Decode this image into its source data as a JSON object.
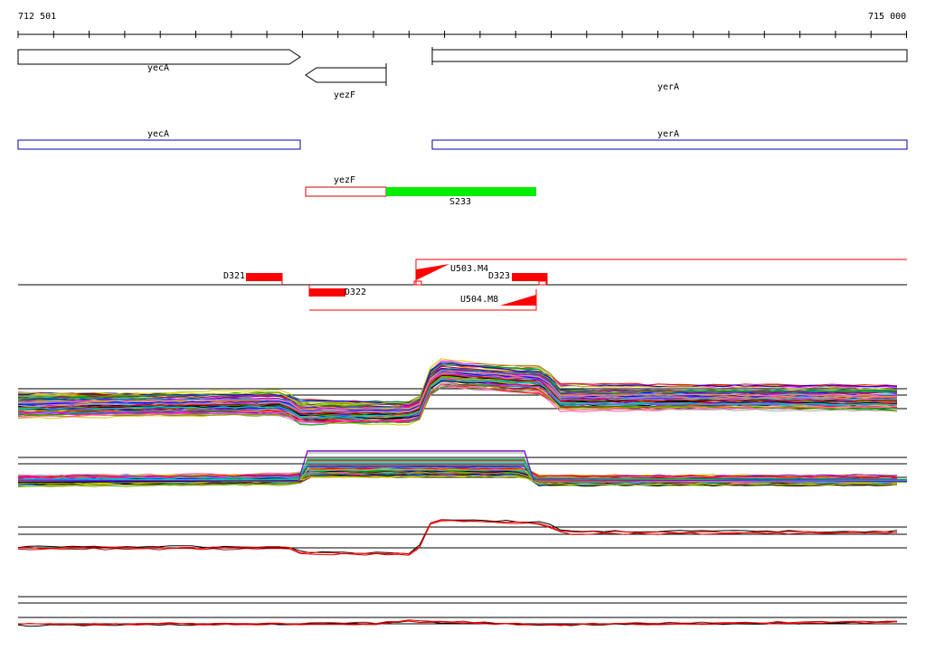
{
  "ruler": {
    "start_label": "712 501",
    "end_label": "715 000"
  },
  "gene_track": {
    "genes": [
      {
        "name": "yecA",
        "strand": "+"
      },
      {
        "name": "yezF",
        "strand": "-"
      },
      {
        "name": "yerA",
        "strand": "+"
      }
    ]
  },
  "annotation_track": {
    "boxes": [
      {
        "name": "yecA"
      },
      {
        "name": "yerA"
      }
    ]
  },
  "segment_track": {
    "outline_label": "yezF",
    "filled_label": "S233",
    "filled_color": "#00ee00",
    "outline_color": "#cc0000"
  },
  "feature_track": {
    "labels": [
      "D321",
      "D322",
      "D323",
      "U503.M4",
      "U504.M8"
    ],
    "color": "#ff0000"
  },
  "colors": {
    "palette": [
      "#ff0000",
      "#00aa00",
      "#0000ff",
      "#ff00ff",
      "#00cccc",
      "#cccc00",
      "#ff8800",
      "#8800ff",
      "#008888",
      "#888800",
      "#ff66aa",
      "#66aa00",
      "#0088ff",
      "#aa0066",
      "#000000",
      "#aaaaaa"
    ]
  }
}
